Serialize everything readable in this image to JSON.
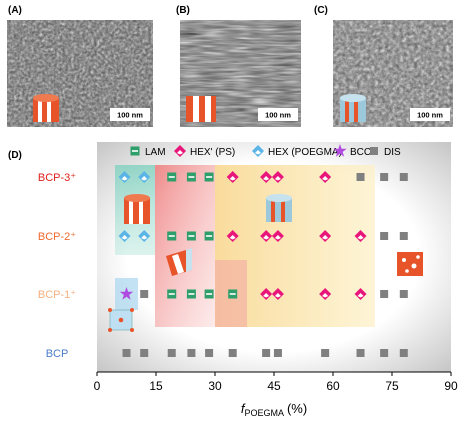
{
  "panels": [
    {
      "label": "(A)",
      "scale_bar": "100 nm"
    },
    {
      "label": "(B)",
      "scale_bar": "100 nm"
    },
    {
      "label": "(C)",
      "scale_bar": "100 nm"
    }
  ],
  "chart_data": {
    "type": "phase-scatter",
    "panel_label": "(D)",
    "xlabel": {
      "symbol": "f",
      "subscript": "POEGMA",
      "unit": "(%)"
    },
    "categories": [
      "BCP",
      "BCP-1⁺",
      "BCP-2⁺",
      "BCP-3⁺"
    ],
    "category_colors": [
      "#4a7cc7",
      "#f5b080",
      "#f06a30",
      "#e0201b"
    ],
    "xlim": [
      0,
      90
    ],
    "xticks": [
      0,
      15,
      30,
      45,
      60,
      75,
      90
    ],
    "series": [
      {
        "name": "LAM",
        "marker": "lam",
        "color": "#2e9e6a",
        "values": [
          19,
          24,
          28.5,
          19,
          24,
          28.5,
          19,
          24,
          28.5,
          34.5
        ],
        "rows": [
          "BCP-3⁺",
          "BCP-3⁺",
          "BCP-3⁺",
          "BCP-2⁺",
          "BCP-2⁺",
          "BCP-2⁺",
          "BCP-1⁺",
          "BCP-1⁺",
          "BCP-1⁺",
          "BCP-1⁺"
        ]
      },
      {
        "name": "HEX' (PS)",
        "marker": "diamond",
        "color": "#e8167a",
        "values": [
          34.5,
          43,
          46,
          58,
          34.5,
          43,
          46,
          58,
          67,
          43,
          46,
          58,
          67
        ],
        "rows": [
          "BCP-3⁺",
          "BCP-3⁺",
          "BCP-3⁺",
          "BCP-3⁺",
          "BCP-2⁺",
          "BCP-2⁺",
          "BCP-2⁺",
          "BCP-2⁺",
          "BCP-2⁺",
          "BCP-1⁺",
          "BCP-1⁺",
          "BCP-1⁺",
          "BCP-1⁺"
        ]
      },
      {
        "name": "HEX (POEGMA)",
        "marker": "diamond",
        "color": "#5ab4e6",
        "values": [
          7,
          12,
          7,
          12
        ],
        "rows": [
          "BCP-3⁺",
          "BCP-3⁺",
          "BCP-2⁺",
          "BCP-2⁺"
        ]
      },
      {
        "name": "BCC",
        "marker": "star",
        "color": "#b04be0",
        "values": [
          7.5
        ],
        "rows": [
          "BCP-1⁺"
        ]
      },
      {
        "name": "DIS",
        "marker": "square",
        "color": "#808080",
        "values": [
          67,
          73,
          78,
          73,
          78,
          12,
          73,
          78,
          7.5,
          12,
          19,
          24,
          28.5,
          34.5,
          43,
          46,
          58,
          67,
          73,
          78
        ],
        "rows": [
          "BCP-3⁺",
          "BCP-3⁺",
          "BCP-3⁺",
          "BCP-2⁺",
          "BCP-2⁺",
          "BCP-1⁺",
          "BCP-1⁺",
          "BCP-1⁺",
          "BCP",
          "BCP",
          "BCP",
          "BCP",
          "BCP",
          "BCP",
          "BCP",
          "BCP",
          "BCP",
          "BCP",
          "BCP",
          "BCP"
        ]
      }
    ]
  }
}
